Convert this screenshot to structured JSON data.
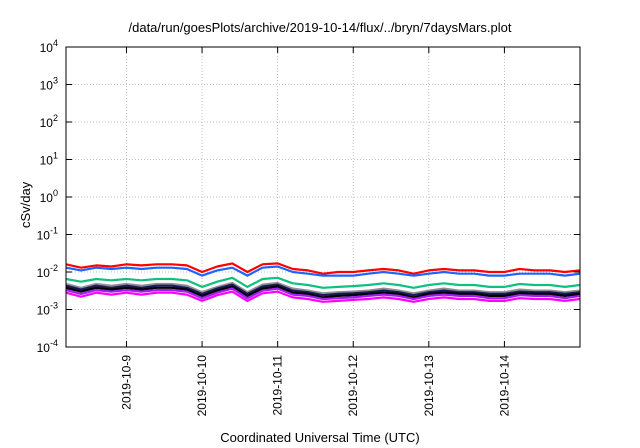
{
  "chart_data": {
    "type": "line",
    "title": "/data/run/goesPlots/archive/2019-10-14/flux/../bryn/7daysMars.plot",
    "xlabel": "Coordinated Universal Time (UTC)",
    "ylabel": "cSv/day",
    "yscale": "log",
    "ylim": [
      0.0001,
      10000
    ],
    "y_ticks": [
      {
        "value": 0.0001,
        "base": "10",
        "exp": "-4"
      },
      {
        "value": 0.001,
        "base": "10",
        "exp": "-3"
      },
      {
        "value": 0.01,
        "base": "10",
        "exp": "-2"
      },
      {
        "value": 0.1,
        "base": "10",
        "exp": "-1"
      },
      {
        "value": 1,
        "base": "10",
        "exp": "0"
      },
      {
        "value": 10,
        "base": "10",
        "exp": "1"
      },
      {
        "value": 100,
        "base": "10",
        "exp": "2"
      },
      {
        "value": 1000,
        "base": "10",
        "exp": "3"
      },
      {
        "value": 10000,
        "base": "10",
        "exp": "4"
      }
    ],
    "xlim": [
      0,
      6.8
    ],
    "x_ticks": [
      {
        "value": 0.8,
        "label": "2019-10-9"
      },
      {
        "value": 1.8,
        "label": "2019-10-10"
      },
      {
        "value": 2.8,
        "label": "2019-10-11"
      },
      {
        "value": 3.8,
        "label": "2019-10-12"
      },
      {
        "value": 4.8,
        "label": "2019-10-13"
      },
      {
        "value": 5.8,
        "label": "2019-10-14"
      }
    ],
    "grid": true,
    "x": [
      0,
      0.2,
      0.4,
      0.6,
      0.8,
      1.0,
      1.2,
      1.4,
      1.6,
      1.8,
      2.0,
      2.2,
      2.4,
      2.6,
      2.8,
      3.0,
      3.2,
      3.4,
      3.6,
      3.8,
      4.0,
      4.2,
      4.4,
      4.6,
      4.8,
      5.0,
      5.2,
      5.4,
      5.6,
      5.8,
      6.0,
      6.2,
      6.4,
      6.6,
      6.8
    ],
    "series": [
      {
        "name": "red",
        "color": "#ff0000",
        "values": [
          0.016,
          0.013,
          0.015,
          0.014,
          0.016,
          0.015,
          0.016,
          0.016,
          0.015,
          0.01,
          0.014,
          0.017,
          0.01,
          0.016,
          0.017,
          0.012,
          0.011,
          0.009,
          0.01,
          0.01,
          0.011,
          0.012,
          0.011,
          0.009,
          0.011,
          0.012,
          0.011,
          0.011,
          0.01,
          0.01,
          0.012,
          0.011,
          0.011,
          0.01,
          0.011
        ]
      },
      {
        "name": "blue",
        "color": "#1e64ff",
        "values": [
          0.013,
          0.011,
          0.013,
          0.012,
          0.013,
          0.012,
          0.013,
          0.013,
          0.012,
          0.008,
          0.011,
          0.013,
          0.008,
          0.013,
          0.014,
          0.01,
          0.009,
          0.008,
          0.008,
          0.008,
          0.009,
          0.01,
          0.009,
          0.008,
          0.009,
          0.01,
          0.009,
          0.009,
          0.008,
          0.008,
          0.009,
          0.009,
          0.009,
          0.008,
          0.009
        ]
      },
      {
        "name": "green",
        "color": "#10c080",
        "values": [
          0.0065,
          0.0055,
          0.0065,
          0.006,
          0.0065,
          0.006,
          0.0065,
          0.0065,
          0.006,
          0.004,
          0.0055,
          0.007,
          0.004,
          0.0065,
          0.007,
          0.005,
          0.0045,
          0.0038,
          0.004,
          0.0042,
          0.0045,
          0.005,
          0.0045,
          0.0038,
          0.0045,
          0.005,
          0.0045,
          0.0045,
          0.004,
          0.004,
          0.0048,
          0.0045,
          0.0045,
          0.004,
          0.0045
        ]
      },
      {
        "name": "gray",
        "color": "#909090",
        "values": [
          0.0048,
          0.0038,
          0.0048,
          0.0043,
          0.0048,
          0.0043,
          0.0048,
          0.0048,
          0.0043,
          0.0029,
          0.004,
          0.0051,
          0.0029,
          0.0046,
          0.0051,
          0.0036,
          0.0032,
          0.0027,
          0.0029,
          0.003,
          0.0032,
          0.0036,
          0.0032,
          0.0027,
          0.0032,
          0.0036,
          0.0032,
          0.0032,
          0.0029,
          0.0029,
          0.0034,
          0.0032,
          0.0032,
          0.0029,
          0.0032
        ]
      },
      {
        "name": "navy",
        "color": "#1a1a5a",
        "values": [
          0.0043,
          0.0034,
          0.0043,
          0.0038,
          0.0043,
          0.0038,
          0.0043,
          0.0043,
          0.0038,
          0.0026,
          0.0036,
          0.0046,
          0.0026,
          0.0041,
          0.0046,
          0.0032,
          0.0029,
          0.0024,
          0.0026,
          0.0027,
          0.0029,
          0.0032,
          0.0029,
          0.0024,
          0.0029,
          0.0032,
          0.0029,
          0.0029,
          0.0026,
          0.0026,
          0.003,
          0.0029,
          0.0029,
          0.0026,
          0.0029
        ]
      },
      {
        "name": "black",
        "color": "#000000",
        "values": [
          0.0038,
          0.003,
          0.0038,
          0.0034,
          0.0038,
          0.0034,
          0.0038,
          0.0038,
          0.0034,
          0.0023,
          0.0032,
          0.0041,
          0.0023,
          0.0036,
          0.0041,
          0.0028,
          0.0026,
          0.0021,
          0.0023,
          0.0024,
          0.0026,
          0.0028,
          0.0026,
          0.0021,
          0.0026,
          0.0028,
          0.0026,
          0.0026,
          0.0023,
          0.0023,
          0.0027,
          0.0026,
          0.0026,
          0.0023,
          0.0026
        ]
      },
      {
        "name": "purple",
        "color": "#a020f0",
        "values": [
          0.0033,
          0.0026,
          0.0033,
          0.003,
          0.0033,
          0.003,
          0.0033,
          0.0033,
          0.003,
          0.002,
          0.0028,
          0.0036,
          0.002,
          0.0032,
          0.0036,
          0.0025,
          0.0023,
          0.0019,
          0.002,
          0.0021,
          0.0023,
          0.0025,
          0.0023,
          0.0019,
          0.0023,
          0.0025,
          0.0023,
          0.0023,
          0.002,
          0.002,
          0.0024,
          0.0023,
          0.0023,
          0.002,
          0.0023
        ]
      },
      {
        "name": "magenta",
        "color": "#ff00ff",
        "values": [
          0.0028,
          0.0022,
          0.0028,
          0.0025,
          0.0028,
          0.0025,
          0.0028,
          0.0028,
          0.0025,
          0.0017,
          0.0024,
          0.003,
          0.0017,
          0.0027,
          0.003,
          0.0021,
          0.0019,
          0.0016,
          0.0017,
          0.0018,
          0.0019,
          0.0021,
          0.0019,
          0.0016,
          0.0019,
          0.0021,
          0.0019,
          0.0019,
          0.0017,
          0.0017,
          0.002,
          0.0019,
          0.0019,
          0.0017,
          0.0019
        ]
      }
    ]
  }
}
